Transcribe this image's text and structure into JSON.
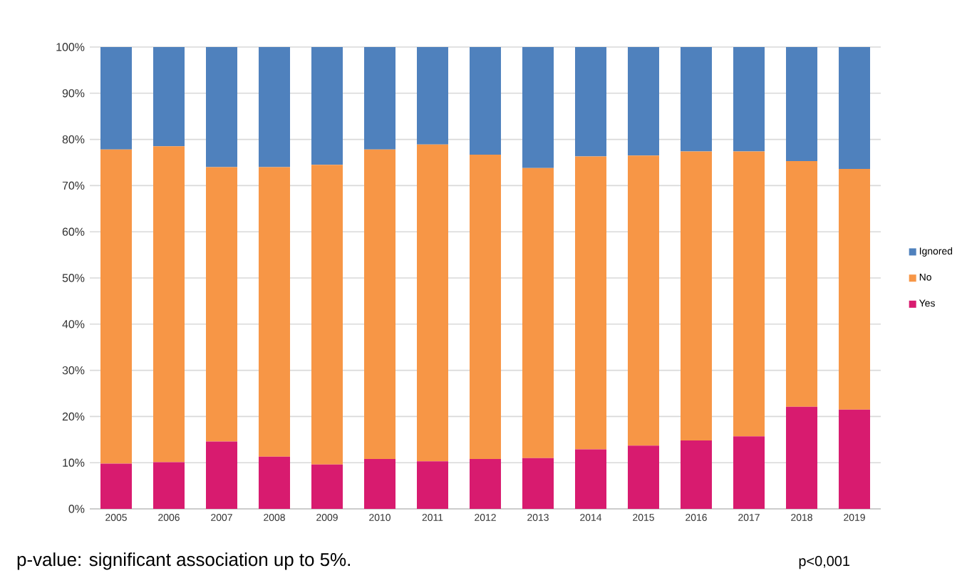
{
  "chart_data": {
    "type": "bar",
    "stacked": true,
    "categories": [
      "2005",
      "2006",
      "2007",
      "2008",
      "2009",
      "2010",
      "2011",
      "2012",
      "2013",
      "2014",
      "2015",
      "2016",
      "2017",
      "2018",
      "2019"
    ],
    "series": [
      {
        "name": "Yes",
        "color": "#d81b6f",
        "values": [
          9.8,
          10.1,
          14.6,
          11.3,
          9.6,
          10.8,
          10.3,
          10.8,
          11.0,
          12.9,
          13.7,
          14.8,
          15.7,
          22.1,
          21.5
        ]
      },
      {
        "name": "No",
        "color": "#f79646",
        "values": [
          68.0,
          68.4,
          59.4,
          62.7,
          64.9,
          67.0,
          68.6,
          65.9,
          62.8,
          63.4,
          62.8,
          62.6,
          61.7,
          53.2,
          52.1
        ]
      },
      {
        "name": "Ignored",
        "color": "#4f81bd",
        "values": [
          22.2,
          21.5,
          26.0,
          26.0,
          25.5,
          22.2,
          21.1,
          23.3,
          26.2,
          23.7,
          23.5,
          22.6,
          22.6,
          24.7,
          26.4
        ]
      }
    ],
    "ylim": [
      0,
      100
    ],
    "yticks": [
      {
        "value": 0,
        "label": "0%"
      },
      {
        "value": 10,
        "label": "10%"
      },
      {
        "value": 20,
        "label": "20%"
      },
      {
        "value": 30,
        "label": "30%"
      },
      {
        "value": 40,
        "label": "40%"
      },
      {
        "value": 50,
        "label": "50%"
      },
      {
        "value": 60,
        "label": "60%"
      },
      {
        "value": 70,
        "label": "70%"
      },
      {
        "value": 80,
        "label": "80%"
      },
      {
        "value": 90,
        "label": "90%"
      },
      {
        "value": 100,
        "label": "100%"
      }
    ],
    "grid": "y",
    "legend": "right",
    "annotations": [
      "p-value: significant association up to 5%.",
      "p<0,001"
    ]
  }
}
